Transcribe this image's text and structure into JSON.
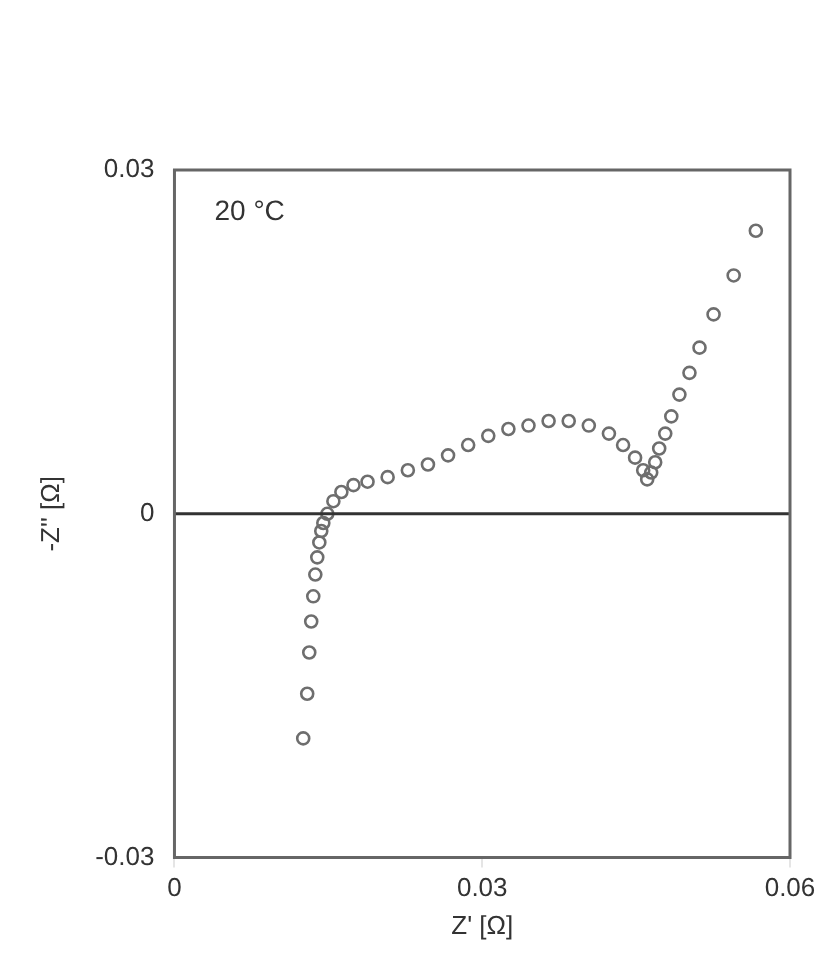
{
  "chart_data": {
    "type": "scatter",
    "xlabel": "Z' [Ω]",
    "ylabel": "-Z'' [Ω]",
    "annotations": [
      "20 °C"
    ],
    "xlim": [
      0,
      0.06
    ],
    "xticks": [
      0,
      0.03,
      0.06
    ],
    "ylim": [
      -0.03,
      0.03
    ],
    "yticks": [
      -0.03,
      0,
      0.03
    ],
    "grid": false,
    "legend": false,
    "marker": "circle",
    "ref_lines": [
      {
        "axis": "y",
        "value": 0,
        "color": "#333333"
      }
    ],
    "series": [
      {
        "color": "#6e6e6e",
        "x": [
          0.01255,
          0.01294,
          0.01314,
          0.01333,
          0.01353,
          0.01373,
          0.01392,
          0.01412,
          0.01431,
          0.01451,
          0.0149,
          0.01549,
          0.01627,
          0.01745,
          0.01882,
          0.02078,
          0.02275,
          0.02471,
          0.02667,
          0.02863,
          0.03059,
          0.03255,
          0.03451,
          0.03647,
          0.03843,
          0.04039,
          0.04235,
          0.04373,
          0.0449,
          0.04569,
          0.04608,
          0.04647,
          0.04686,
          0.04725,
          0.04784,
          0.04843,
          0.04922,
          0.0502,
          0.05118,
          0.05255,
          0.05451,
          0.05667
        ],
        "values": [
          -0.0196,
          -0.0157,
          -0.0121,
          -0.0094,
          -0.0072,
          -0.0053,
          -0.0038,
          -0.0025,
          -0.0015,
          -0.0008,
          0,
          0.0011,
          0.0019,
          0.0025,
          0.0028,
          0.0032,
          0.0038,
          0.0043,
          0.0051,
          0.006,
          0.0068,
          0.0074,
          0.0077,
          0.0081,
          0.0081,
          0.0077,
          0.007,
          0.006,
          0.0049,
          0.0038,
          0.003,
          0.0036,
          0.0045,
          0.0057,
          0.007,
          0.0085,
          0.0104,
          0.0123,
          0.0145,
          0.0174,
          0.0208,
          0.0247
        ]
      }
    ]
  }
}
